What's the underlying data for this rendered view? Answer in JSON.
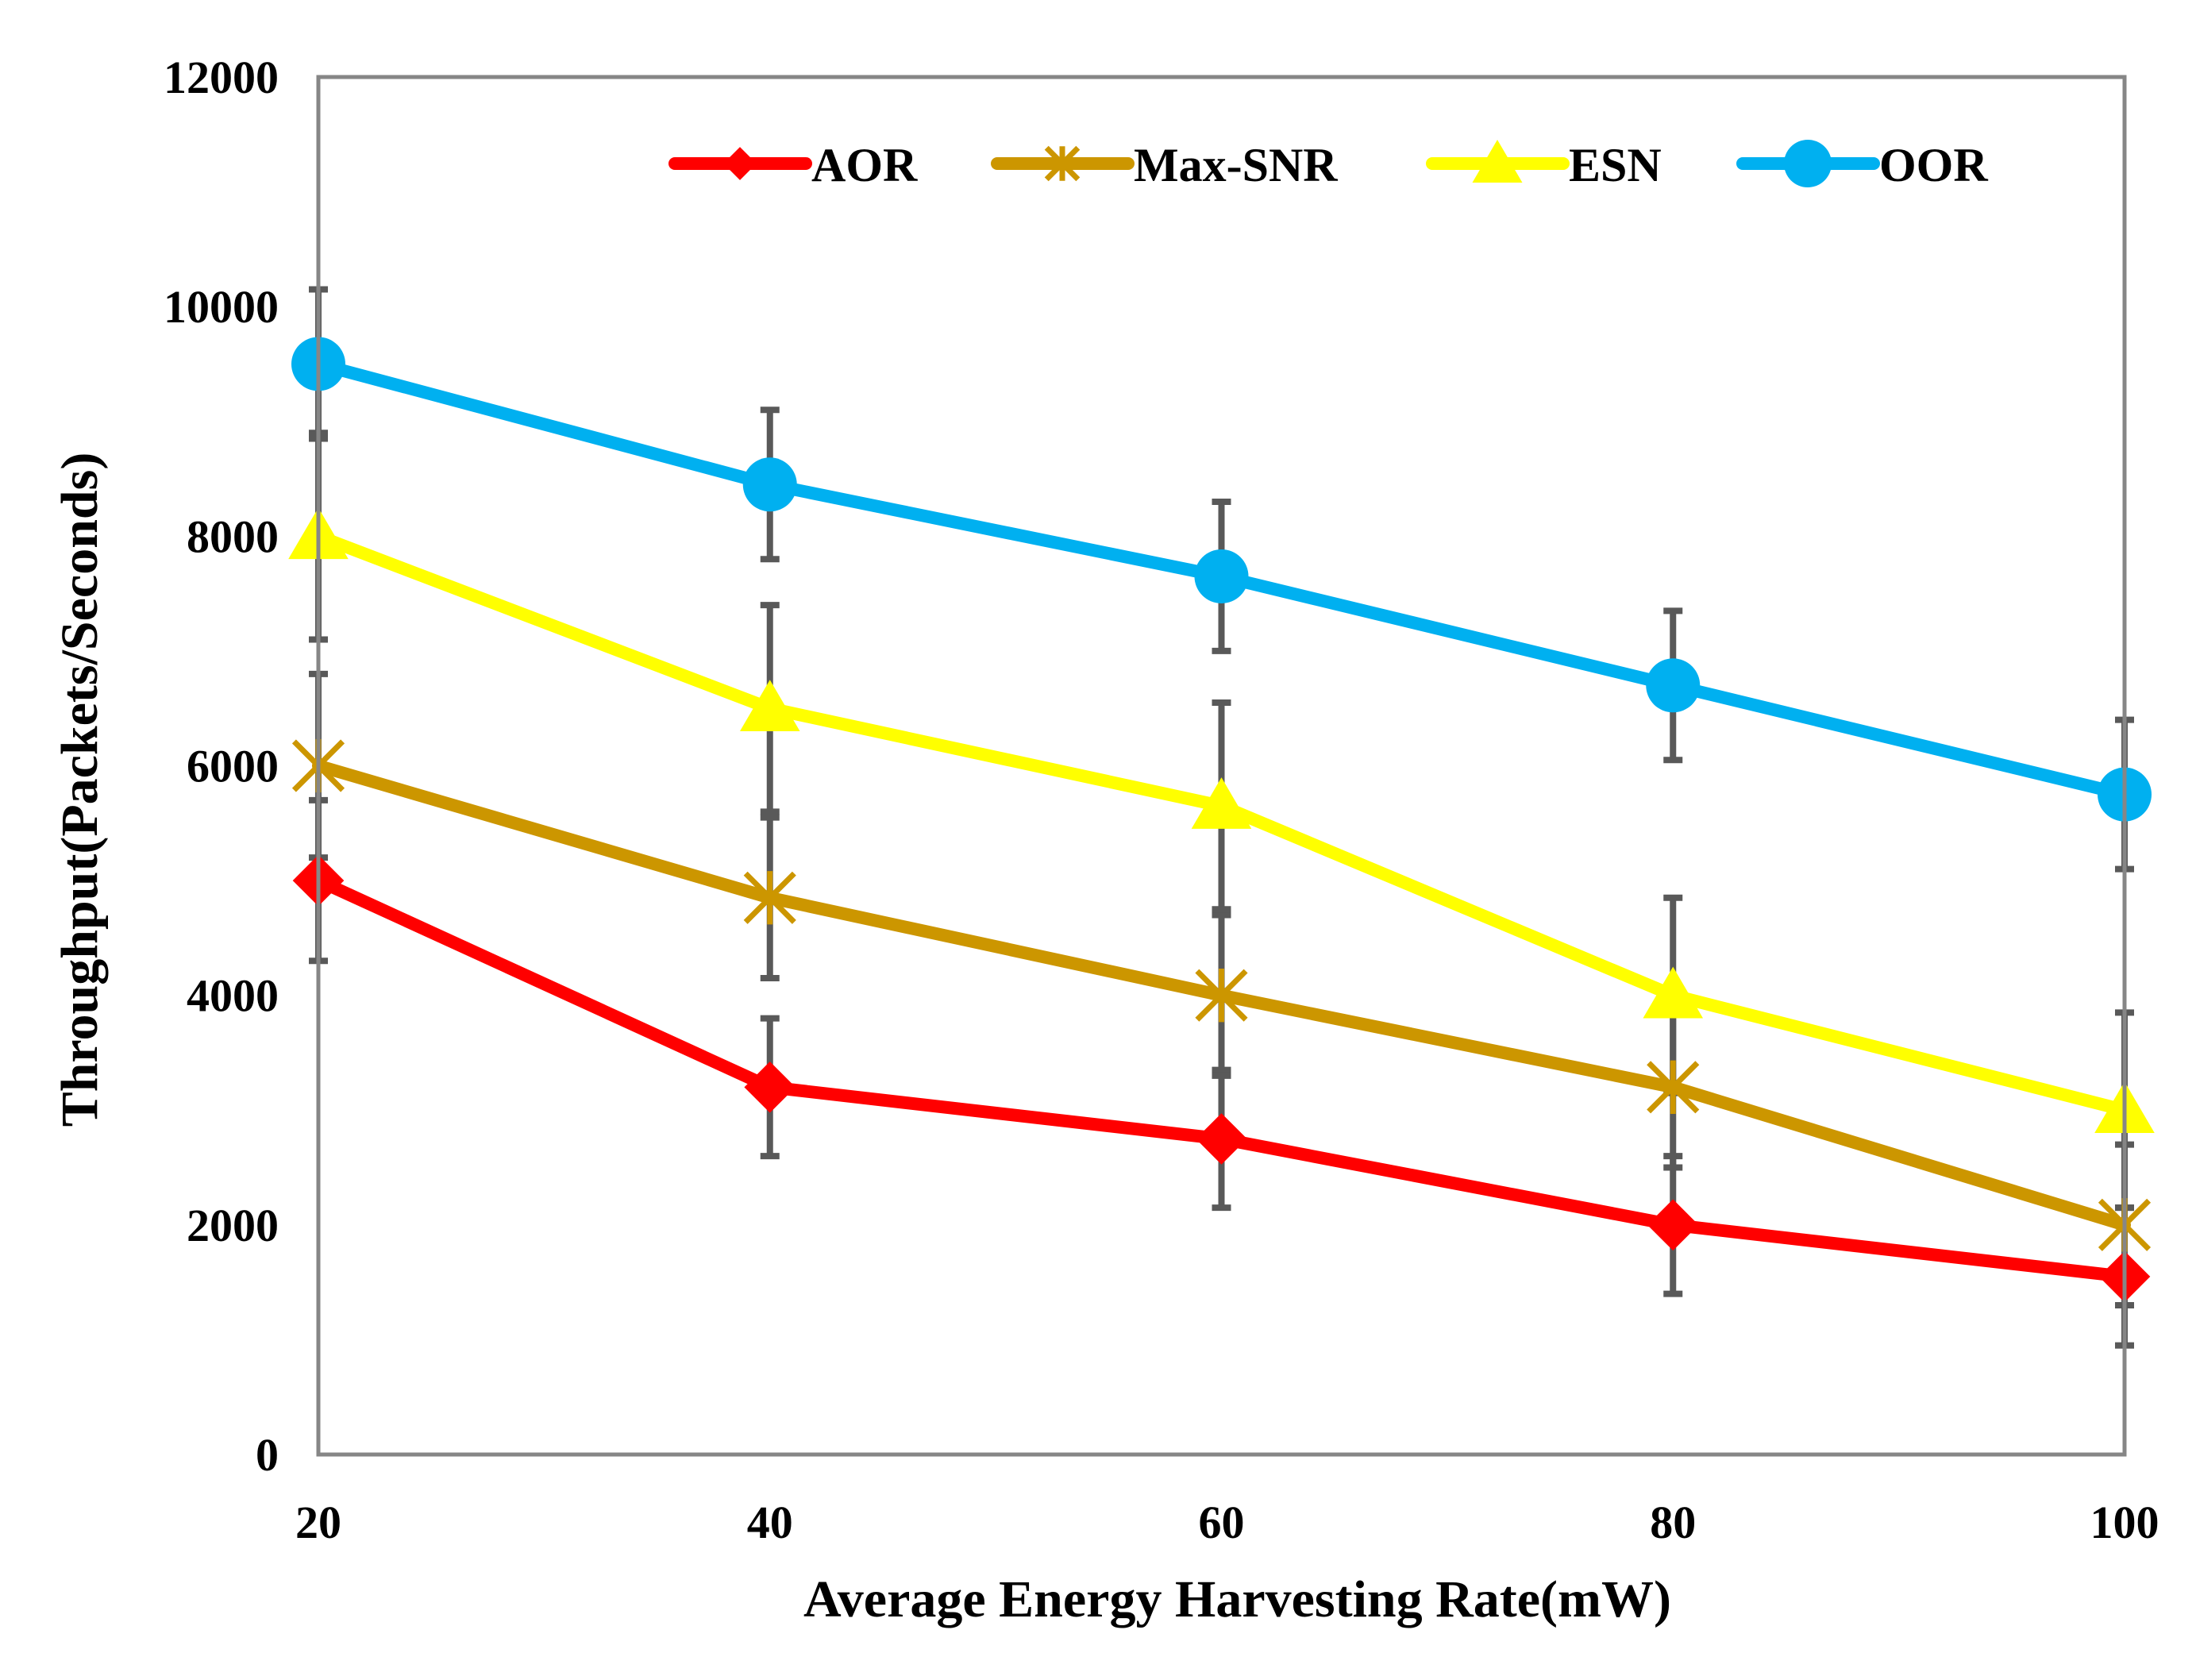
{
  "chart_data": {
    "type": "line",
    "title": "",
    "xlabel": "Average Energy Harvesting Rate(mW)",
    "ylabel": "Throughput(Packets/Seconds)",
    "x": [
      20,
      40,
      60,
      80,
      100
    ],
    "x_tick_labels": [
      "20",
      "40",
      "60",
      "80",
      "100"
    ],
    "xlim": [
      20,
      100
    ],
    "ylim": [
      0,
      12000
    ],
    "y_ticks": [
      0,
      2000,
      4000,
      6000,
      8000,
      10000,
      12000
    ],
    "y_tick_labels": [
      "0",
      "2000",
      "4000",
      "6000",
      "8000",
      "10000",
      "12000"
    ],
    "grid": false,
    "legend_position": "top",
    "series": [
      {
        "name": "AOR",
        "color": "#ff0000",
        "marker": "diamond",
        "values": [
          5000,
          3200,
          2750,
          2000,
          1550
        ],
        "error": [
          700,
          600,
          600,
          600,
          600
        ]
      },
      {
        "name": "Max-SNR",
        "color": "#cc9600",
        "marker": "star",
        "values": [
          6000,
          4850,
          4000,
          3200,
          2000
        ],
        "error": [
          800,
          700,
          700,
          700,
          700
        ]
      },
      {
        "name": "ESN",
        "color": "#ffff00",
        "marker": "triangle",
        "values": [
          8000,
          6500,
          5650,
          4000,
          3000
        ],
        "error": [
          900,
          900,
          900,
          850,
          850
        ]
      },
      {
        "name": "OOR",
        "color": "#00b0f0",
        "marker": "circle",
        "values": [
          9500,
          8450,
          7650,
          6700,
          5750
        ],
        "error": [
          650,
          650,
          650,
          650,
          650
        ]
      }
    ]
  }
}
